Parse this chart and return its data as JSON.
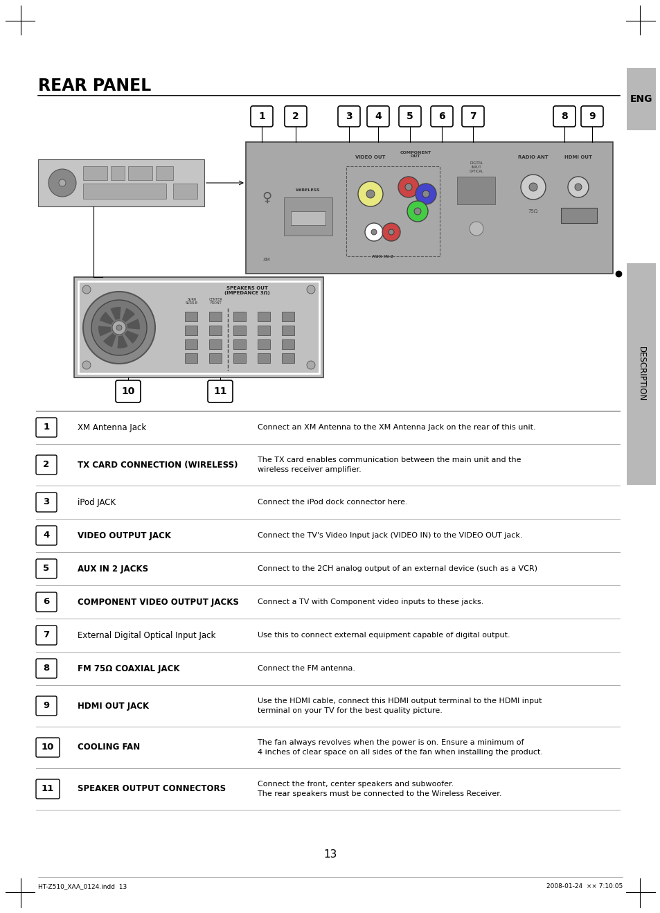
{
  "title": "REAR PANEL",
  "page_number": "13",
  "footer_left": "HT-Z510_XAA_0124.indd  13",
  "footer_right": "2008-01-24  ×× 7:10:05",
  "bg_color": "#ffffff",
  "table_rows": [
    {
      "num": "1",
      "label": "XM Antenna Jack",
      "label_bold": false,
      "desc": "Connect an XM Antenna to the XM Antenna Jack on the rear of this unit."
    },
    {
      "num": "2",
      "label": "TX CARD CONNECTION (WIRELESS)",
      "label_bold": true,
      "desc": "The TX card enables communication between the main unit and the\nwireless receiver amplifier."
    },
    {
      "num": "3",
      "label": "iPod JACK",
      "label_bold": false,
      "desc": "Connect the iPod dock connector here."
    },
    {
      "num": "4",
      "label": "VIDEO OUTPUT JACK",
      "label_bold": true,
      "desc": "Connect the TV's Video Input jack (VIDEO IN) to the VIDEO OUT jack."
    },
    {
      "num": "5",
      "label": "AUX IN 2 JACKS",
      "label_bold": true,
      "desc": "Connect to the 2CH analog output of an external device (such as a VCR)"
    },
    {
      "num": "6",
      "label": "COMPONENT VIDEO OUTPUT JACKS",
      "label_bold": true,
      "desc": "Connect a TV with Component video inputs to these jacks."
    },
    {
      "num": "7",
      "label": "External Digital Optical Input Jack",
      "label_bold": false,
      "desc": "Use this to connect external equipment capable of digital output."
    },
    {
      "num": "8",
      "label": "FM 75Ω COAXIAL JACK",
      "label_bold": true,
      "desc": "Connect the FM antenna."
    },
    {
      "num": "9",
      "label": "HDMI OUT JACK",
      "label_bold": true,
      "desc": "Use the HDMI cable, connect this HDMI output terminal to the HDMI input\nterminal on your TV for the best quality picture."
    },
    {
      "num": "10",
      "label": "COOLING FAN",
      "label_bold": true,
      "desc": "The fan always revolves when the power is on. Ensure a minimum of\n4 inches of clear space on all sides of the fan when installing the product."
    },
    {
      "num": "11",
      "label": "SPEAKER OUTPUT CONNECTORS",
      "label_bold": true,
      "desc": "Connect the front, center speakers and subwoofer.\nThe rear speakers must be connected to the Wireless Receiver."
    }
  ]
}
